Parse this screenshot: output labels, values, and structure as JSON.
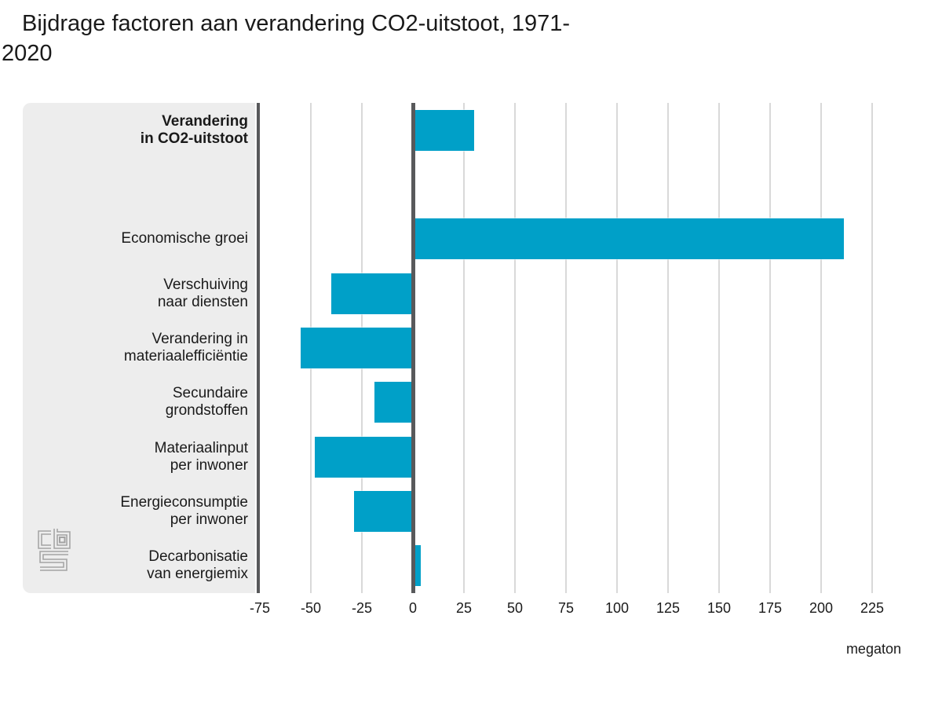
{
  "page": {
    "title": "Bijdrage factoren aan verandering CO2-uitstoot, 1971-2020",
    "title_lines": [
      "Bijdrage factoren aan verandering CO2-uitstoot, 1971-",
      "2020"
    ]
  },
  "branding": {
    "logo": "cbs-logo",
    "logo_text": "cbs"
  },
  "chart_data": {
    "type": "bar",
    "orientation": "horizontal",
    "title": "Bijdrage factoren aan verandering CO2-uitstoot, 1971-2020",
    "xlabel": "megaton",
    "unit": "megaton",
    "xlim": [
      -75,
      240
    ],
    "x_ticks": [
      -75,
      -50,
      -25,
      0,
      25,
      50,
      75,
      100,
      125,
      150,
      175,
      200,
      225
    ],
    "grid": true,
    "legend": false,
    "categories": [
      "Verandering in CO2-uitstoot",
      "Economische groei",
      "Verschuiving naar diensten",
      "Verandering in materiaalefficiëntie",
      "Secundaire grondstoffen",
      "Materiaalinput per inwoner",
      "Energieconsumptie per inwoner",
      "Decarbonisatie van energiemix"
    ],
    "values": [
      30,
      211,
      -40,
      -55,
      -19,
      -48,
      -29,
      4
    ],
    "rows": [
      {
        "key": "verandering-co2",
        "label_lines": [
          "Verandering",
          "in CO2-uitstoot"
        ],
        "value": 30,
        "bold": true
      },
      {
        "key": "spacer",
        "label_lines": [],
        "value": null,
        "spacer": true
      },
      {
        "key": "economische-groei",
        "label_lines": [
          "Economische groei"
        ],
        "value": 211
      },
      {
        "key": "verschuiving-diensten",
        "label_lines": [
          "Verschuiving",
          "naar diensten"
        ],
        "value": -40
      },
      {
        "key": "materiaalefficientie",
        "label_lines": [
          "Verandering in",
          "materiaalefficiëntie"
        ],
        "value": -55
      },
      {
        "key": "secundaire-grondstoffen",
        "label_lines": [
          "Secundaire",
          "grondstoffen"
        ],
        "value": -19
      },
      {
        "key": "materiaalinput",
        "label_lines": [
          "Materiaalinput",
          "per inwoner"
        ],
        "value": -48
      },
      {
        "key": "energieconsumptie",
        "label_lines": [
          "Energieconsumptie",
          "per inwoner"
        ],
        "value": -29
      },
      {
        "key": "decarbonisatie",
        "label_lines": [
          "Decarbonisatie",
          "van energiemix"
        ],
        "value": 4
      }
    ],
    "colors": {
      "bar": "#00a0c8",
      "axis_line": "#58595b",
      "gridline": "#d9d9d9",
      "panel_bg": "#ededed",
      "text": "#1a1a1a",
      "logo": "#a3a3a3"
    }
  }
}
